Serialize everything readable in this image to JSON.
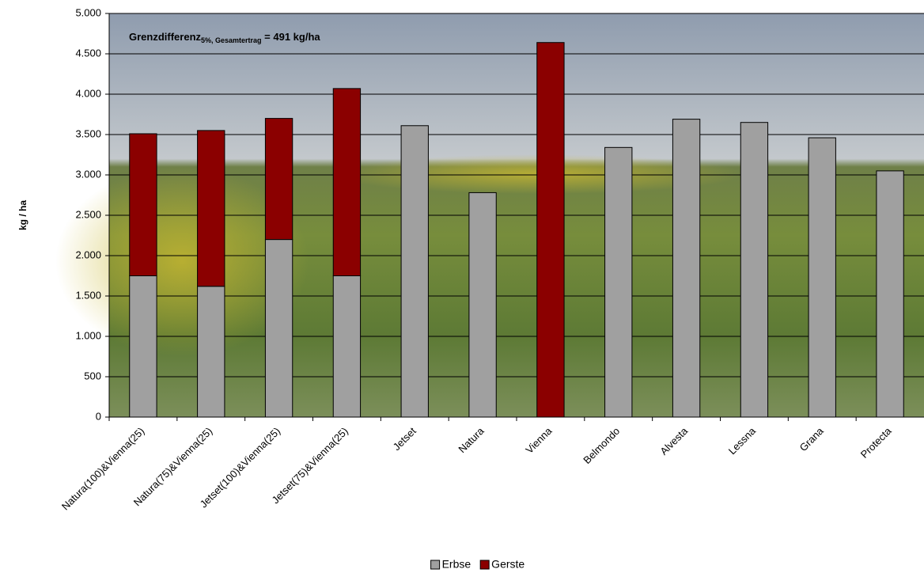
{
  "chart_data": {
    "type": "stacked_bar",
    "y_label": "kg / ha",
    "annotation": {
      "text": "Grenzdifferenz",
      "subscript": "5%, Gesamtertrag",
      "suffix": " = 491 kg/ha"
    },
    "categories": [
      "Natura(100)&Vienna(25)",
      "Natura(75)&Vienna(25)",
      "Jetset(100)&Vienna(25)",
      "Jetset(75)&Vienna(25)",
      "Jetset",
      "Natura",
      "Vienna",
      "Belmondo",
      "Alvesta",
      "Lessna",
      "Grana",
      "Protecta"
    ],
    "series": [
      {
        "name": "Erbse",
        "color": "#a0a0a0",
        "values": [
          1750,
          1620,
          2200,
          1750,
          3610,
          2780,
          null,
          3340,
          3690,
          3650,
          3460,
          3050
        ]
      },
      {
        "name": "Gerste",
        "color": "#8b0000",
        "values": [
          1760,
          1930,
          1500,
          2320,
          null,
          null,
          4640,
          null,
          null,
          null,
          null,
          null
        ]
      }
    ],
    "ylim": [
      0,
      5000
    ],
    "yticks": [
      0,
      500,
      {
        "value": 1000,
        "label": "1.000"
      },
      {
        "value": 1500,
        "label": "1.500"
      },
      {
        "value": 2000,
        "label": "2.000"
      },
      {
        "value": 2500,
        "label": "2.500"
      },
      {
        "value": 3000,
        "label": "3.000"
      },
      {
        "value": 3500,
        "label": "3.500"
      },
      {
        "value": 4000,
        "label": "4.000"
      },
      {
        "value": 4500,
        "label": "4.500"
      },
      {
        "value": 5000,
        "label": "5.000"
      }
    ],
    "grid": true,
    "legend": "bottom"
  }
}
